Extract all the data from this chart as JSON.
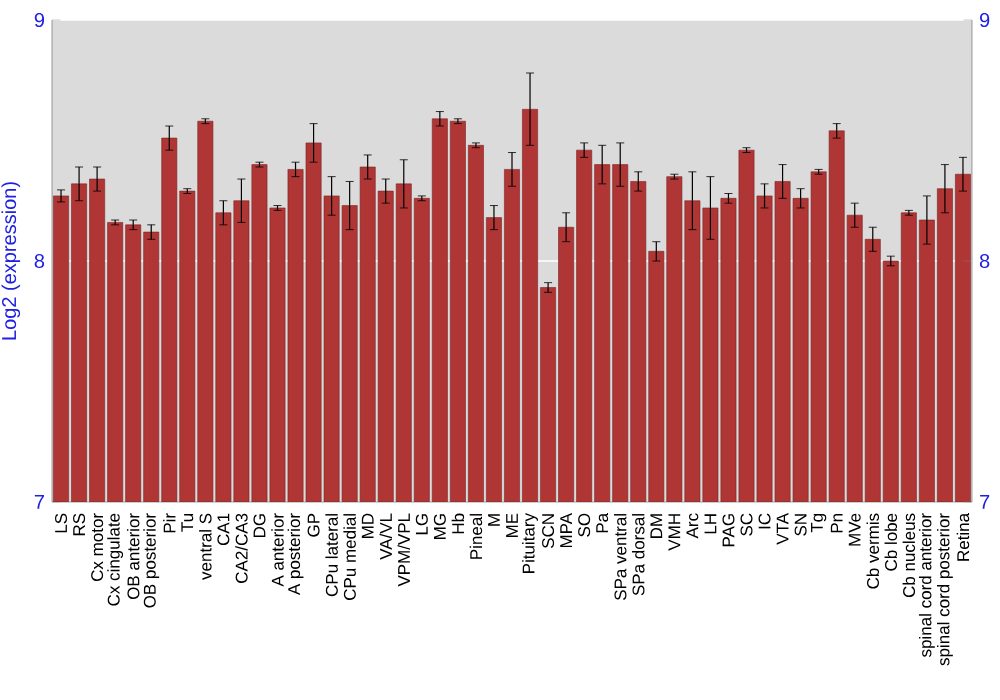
{
  "chart_data": {
    "type": "bar",
    "ylabel": "Log2 (expression)",
    "categories": [
      "LS",
      "RS",
      "Cx motor",
      "Cx cingulate",
      "OB anterior",
      "OB posterior",
      "Pir",
      "Tu",
      "ventral S",
      "CA1",
      "CA2/CA3",
      "DG",
      "A anterior",
      "A posterior",
      "GP",
      "CPu lateral",
      "CPu medial",
      "MD",
      "VA/VL",
      "VPM/VPL",
      "LG",
      "MG",
      "Hb",
      "Pineal",
      "M",
      "ME",
      "Pituitary",
      "SCN",
      "MPA",
      "SO",
      "Pa",
      "SPa ventral",
      "SPa dorsal",
      "DM",
      "VMH",
      "Arc",
      "LH",
      "PAG",
      "SC",
      "IC",
      "VTA",
      "SN",
      "Tg",
      "Pn",
      "MVe",
      "Cb vermis",
      "Cb lobe",
      "Cb nucleus",
      "spinal cord anterior",
      "spinal cord posterior",
      "Retina"
    ],
    "values": [
      8.27,
      8.32,
      8.34,
      8.16,
      8.15,
      8.12,
      8.51,
      8.29,
      8.58,
      8.2,
      8.25,
      8.4,
      8.22,
      8.38,
      8.49,
      8.27,
      8.23,
      8.39,
      8.29,
      8.32,
      8.26,
      8.59,
      8.58,
      8.48,
      8.18,
      8.38,
      8.63,
      7.89,
      8.14,
      8.46,
      8.4,
      8.4,
      8.33,
      8.04,
      8.35,
      8.25,
      8.22,
      8.26,
      8.46,
      8.27,
      8.33,
      8.26,
      8.37,
      8.54,
      8.19,
      8.09,
      8.0,
      8.2,
      8.17,
      8.3,
      8.36
    ],
    "errors": [
      0.025,
      0.07,
      0.05,
      0.01,
      0.02,
      0.03,
      0.05,
      0.01,
      0.01,
      0.05,
      0.09,
      0.01,
      0.01,
      0.03,
      0.08,
      0.08,
      0.1,
      0.05,
      0.05,
      0.1,
      0.01,
      0.03,
      0.01,
      0.01,
      0.05,
      0.07,
      0.15,
      0.02,
      0.06,
      0.03,
      0.08,
      0.09,
      0.04,
      0.04,
      0.01,
      0.12,
      0.13,
      0.02,
      0.01,
      0.05,
      0.07,
      0.04,
      0.01,
      0.03,
      0.05,
      0.05,
      0.02,
      0.01,
      0.1,
      0.1,
      0.07
    ],
    "color": "#b03535",
    "ylim": [
      7,
      9
    ],
    "yticks": [
      7,
      8,
      9
    ],
    "y2lim": [
      7,
      9
    ],
    "y2ticks": [
      7,
      8,
      9
    ],
    "grid": "y"
  }
}
